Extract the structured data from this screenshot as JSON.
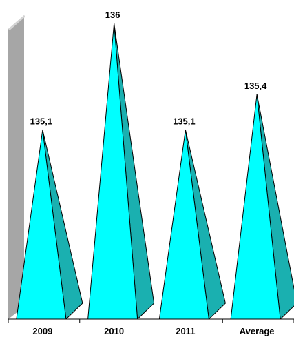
{
  "chart_data": {
    "type": "bar",
    "bar_shape": "pyramid",
    "view": "3d",
    "categories": [
      "2009",
      "2010",
      "2011",
      "Average"
    ],
    "values": [
      135.1,
      136,
      135.1,
      135.4
    ],
    "data_labels": [
      "135,1",
      "136",
      "135,1",
      "135,4"
    ],
    "title": "",
    "xlabel": "",
    "ylabel": "",
    "y_axis_visible": false,
    "grid": false,
    "legend": "none",
    "colors": {
      "front": "#00FFFF",
      "side": "#1AB0B0",
      "outline": "#000000",
      "wall": "#A6A6A6",
      "wall_edge": "#D4D4D4"
    }
  }
}
